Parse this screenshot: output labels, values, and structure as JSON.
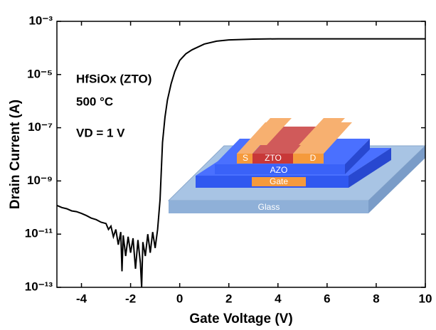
{
  "chart_data": {
    "type": "line",
    "x_label": "Gate Voltage (V)",
    "y_label": "Drain Current (A)",
    "annotations": [
      "HfSiOx (ZTO)",
      "500 °C",
      "VD = 1 V"
    ],
    "inset_labels": [
      "S",
      "ZTO",
      "D",
      "AZO",
      "Gate",
      "Glass"
    ],
    "color": "#000000",
    "log_y": true,
    "xlim": [
      -5,
      10
    ],
    "xticks": [
      -4,
      -2,
      0,
      2,
      4,
      6,
      8,
      10
    ],
    "ylim": [
      1e-13,
      0.001
    ],
    "yticks": [
      {
        "value": 0.001,
        "label": "10⁻³"
      },
      {
        "value": 1e-05,
        "label": "10⁻⁵"
      },
      {
        "value": 1e-07,
        "label": "10⁻⁷"
      },
      {
        "value": 1e-09,
        "label": "10⁻⁹"
      },
      {
        "value": 1e-11,
        "label": "10⁻¹¹"
      },
      {
        "value": 1e-13,
        "label": "10⁻¹³"
      }
    ],
    "x": [
      -5,
      -4.8,
      -4.6,
      -4.4,
      -4.2,
      -4,
      -3.8,
      -3.6,
      -3.4,
      -3.2,
      -3,
      -2.9,
      -2.8,
      -2.7,
      -2.6,
      -2.5,
      -2.4,
      -2.35,
      -2.3,
      -2.2,
      -2.1,
      -2.0,
      -1.9,
      -1.8,
      -1.7,
      -1.6,
      -1.55,
      -1.5,
      -1.4,
      -1.3,
      -1.2,
      -1.1,
      -1.0,
      -0.9,
      -0.8,
      -0.7,
      -0.6,
      -0.5,
      -0.35,
      -0.2,
      0,
      0.25,
      0.5,
      1,
      1.5,
      2,
      3,
      4,
      6,
      8,
      10
    ],
    "values": [
      1.2e-10,
      1e-10,
      9e-11,
      7.5e-11,
      7e-11,
      6e-11,
      5e-11,
      4e-11,
      3.5e-11,
      2.8e-11,
      2.5e-11,
      1.5e-11,
      2e-11,
      8e-12,
      1.5e-11,
      4e-12,
      1.2e-11,
      4e-13,
      9e-12,
      1.5e-12,
      8e-12,
      2e-12,
      7e-12,
      5e-13,
      6e-12,
      8e-13,
      1e-13,
      5e-12,
      1.5e-12,
      1e-11,
      2e-12,
      1.2e-11,
      3e-12,
      1.5e-11,
      2e-10,
      2.8e-08,
      2.5e-07,
      1.1e-06,
      4.5e-06,
      1.3e-05,
      3.4e-05,
      6e-05,
      8.5e-05,
      0.00014,
      0.00018,
      0.0002,
      0.000215,
      0.00022,
      0.00022,
      0.00022,
      0.00022
    ]
  }
}
